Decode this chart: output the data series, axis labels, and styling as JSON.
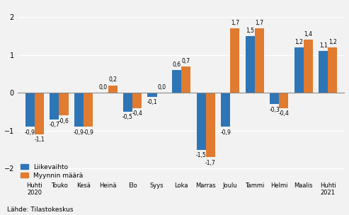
{
  "categories": [
    "Huhti\n2020",
    "Touko",
    "Kesä",
    "Heinä",
    "Elo",
    "Syys",
    "Loka",
    "Marras",
    "Joulu",
    "Tammi",
    "Helmi",
    "Maalis",
    "Huhti\n2021"
  ],
  "liikevaihto": [
    -0.9,
    -0.7,
    -0.9,
    0.0,
    -0.5,
    -0.1,
    0.6,
    -1.5,
    -0.9,
    1.5,
    -0.3,
    1.2,
    1.1
  ],
  "myynnin_maara": [
    -1.1,
    -0.6,
    -0.9,
    0.2,
    -0.4,
    0.0,
    0.7,
    -1.7,
    1.7,
    1.7,
    -0.4,
    1.4,
    1.2
  ],
  "bar_color_blue": "#2e75b6",
  "bar_color_orange": "#e07b30",
  "ylim": [
    -2.35,
    2.35
  ],
  "yticks": [
    -2,
    -1,
    0,
    1,
    2
  ],
  "legend_liikevaihto": "Liikevaihto",
  "legend_myynnin": "Myynnin määrä",
  "source_text": "Lähde: Tilastokeskus",
  "background_color": "#f2f2f2",
  "grid_color": "#ffffff",
  "bar_width": 0.38
}
